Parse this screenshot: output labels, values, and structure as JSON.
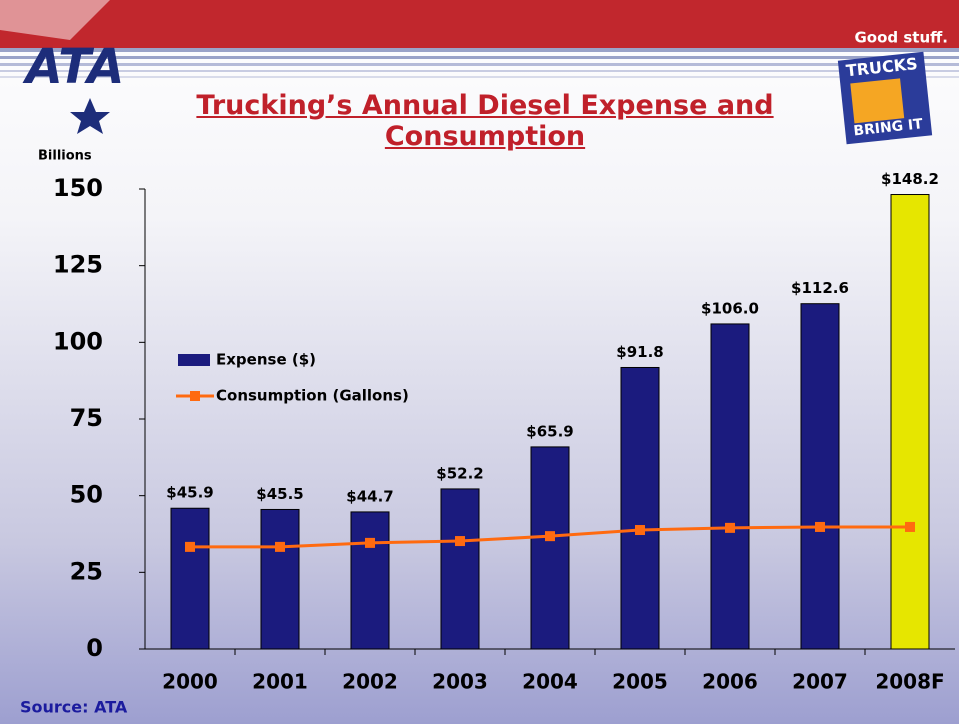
{
  "header": {
    "logo": "ATA",
    "tagline": "Good stuff.",
    "badge_top": "TRUCKS",
    "badge_bottom": "BRING IT"
  },
  "chart_data": {
    "type": "bar",
    "title": "Trucking’s Annual Diesel Expense and Consumption",
    "y_axis_label": "Billions",
    "source": "Source: ATA",
    "categories": [
      "2000",
      "2001",
      "2002",
      "2003",
      "2004",
      "2005",
      "2006",
      "2007",
      "2008F"
    ],
    "series": [
      {
        "name": "Expense ($)",
        "type": "bar",
        "color": "#1b1b7e",
        "colors": [
          "#1b1b7e",
          "#1b1b7e",
          "#1b1b7e",
          "#1b1b7e",
          "#1b1b7e",
          "#1b1b7e",
          "#1b1b7e",
          "#1b1b7e",
          "#e6e600"
        ],
        "values": [
          45.9,
          45.5,
          44.7,
          52.2,
          65.9,
          91.8,
          106.0,
          112.6,
          148.2
        ],
        "value_labels": [
          "$45.9",
          "$45.5",
          "$44.7",
          "$52.2",
          "$65.9",
          "$91.8",
          "$106.0",
          "$112.6",
          "$148.2"
        ]
      },
      {
        "name": "Consumption (Gallons)",
        "type": "line",
        "color": "#ff6a10",
        "values": [
          33.3,
          33.3,
          34.6,
          35.2,
          36.8,
          38.8,
          39.5,
          39.8,
          39.8
        ]
      }
    ],
    "ylim": [
      0,
      150
    ],
    "yticks": [
      0,
      25,
      50,
      75,
      100,
      125,
      150
    ],
    "legend": "upper-left"
  }
}
